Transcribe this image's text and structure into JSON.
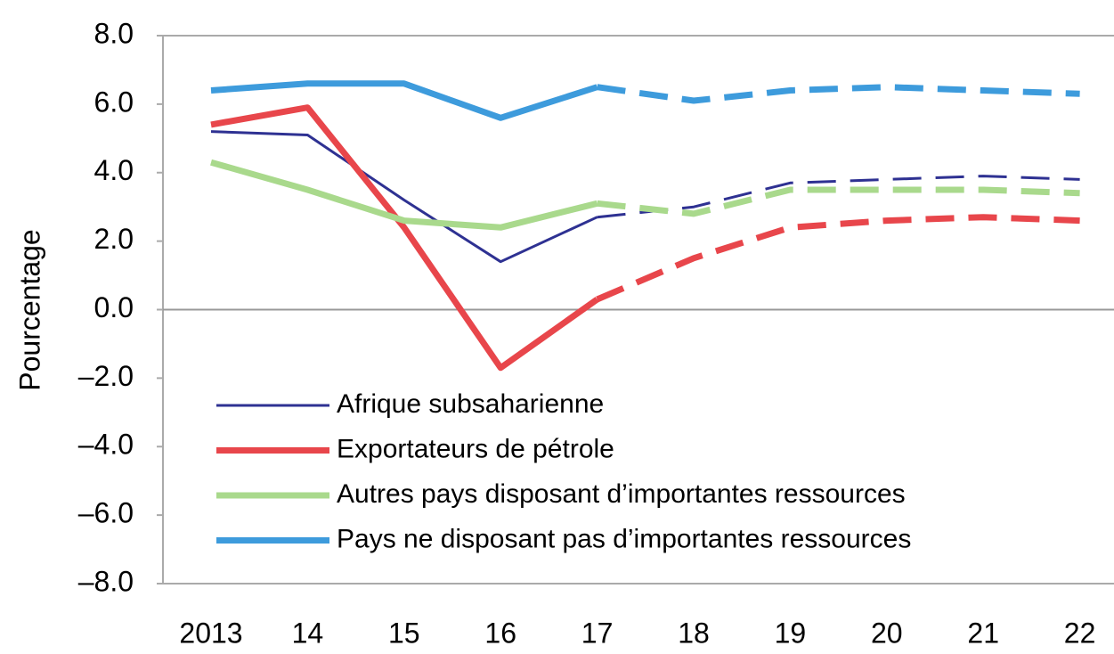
{
  "chart_data": {
    "type": "line",
    "y_label": "Pourcentage",
    "categories": [
      "2013",
      "14",
      "15",
      "16",
      "17",
      "18",
      "19",
      "20",
      "21",
      "22"
    ],
    "dashed_from": "17",
    "series": [
      {
        "name": "Afrique subsaharienne",
        "color": "#2e3192",
        "values": [
          5.2,
          5.1,
          3.2,
          1.4,
          2.7,
          3.0,
          3.7,
          3.8,
          3.9,
          3.8
        ]
      },
      {
        "name": "Exportateurs de pétrole",
        "color": "#e8464b",
        "values": [
          5.4,
          5.9,
          2.4,
          -1.7,
          0.3,
          1.5,
          2.4,
          2.6,
          2.7,
          2.6
        ]
      },
      {
        "name": "Autres pays disposant d’importantes ressources",
        "color": "#a9d98c",
        "values": [
          4.3,
          3.5,
          2.6,
          2.4,
          3.1,
          2.8,
          3.5,
          3.5,
          3.5,
          3.4
        ]
      },
      {
        "name": "Pays ne disposant pas d’importantes ressources",
        "color": "#3d9bdc",
        "values": [
          6.4,
          6.6,
          6.6,
          5.6,
          6.5,
          6.1,
          6.4,
          6.5,
          6.4,
          6.3
        ]
      }
    ],
    "ylim": [
      -8,
      8
    ],
    "yticks": [
      {
        "value": -8,
        "label": "–8.0"
      },
      {
        "value": -6,
        "label": "–6.0"
      },
      {
        "value": -4,
        "label": "–4.0"
      },
      {
        "value": -2,
        "label": "–2.0"
      },
      {
        "value": 0,
        "label": "0.0"
      },
      {
        "value": 2,
        "label": "2.0"
      },
      {
        "value": 4,
        "label": "4.0"
      },
      {
        "value": 6,
        "label": "6.0"
      },
      {
        "value": 8,
        "label": "8.0"
      }
    ],
    "zero_line": true
  }
}
